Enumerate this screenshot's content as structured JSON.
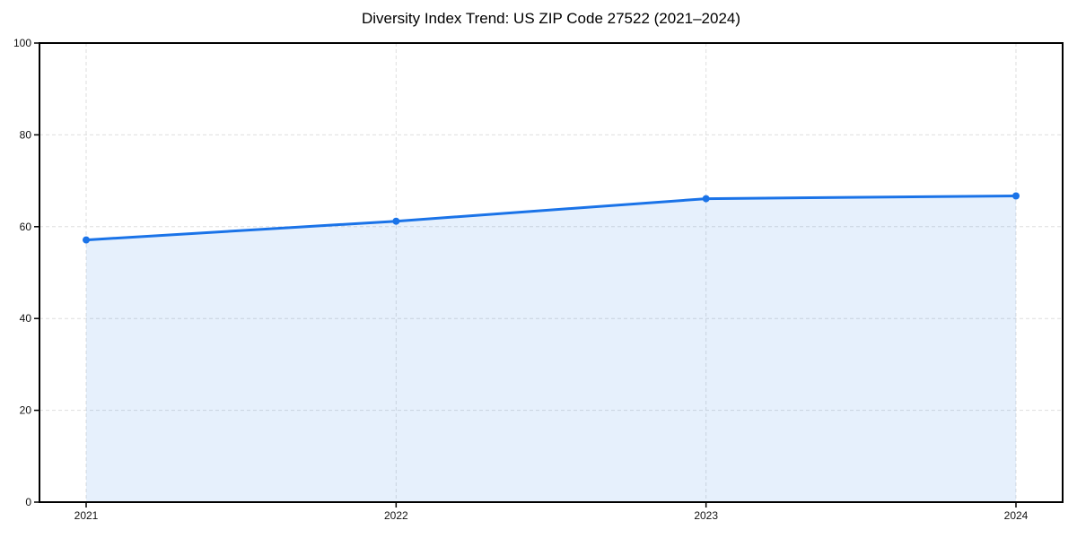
{
  "chart_data": {
    "type": "line",
    "title": "Diversity Index Trend: US ZIP Code 27522 (2021–2024)",
    "x": [
      "2021",
      "2022",
      "2023",
      "2024"
    ],
    "values": [
      57.1,
      61.2,
      66.1,
      66.7
    ],
    "xlabel": "",
    "ylabel": "",
    "ylim": [
      0,
      100
    ],
    "yticks": [
      0,
      20,
      40,
      60,
      80,
      100
    ],
    "grid": "dashed, both axes",
    "legend_position": "none",
    "area_fill_below_line": true,
    "colors": {
      "line": "#1a73e8",
      "marker": "#1a73e8",
      "area_fill": "rgba(26,115,232,0.11)",
      "gridline": "#dedede",
      "spine": "#000000",
      "tick_text": "#111111",
      "background": "#ffffff"
    }
  }
}
